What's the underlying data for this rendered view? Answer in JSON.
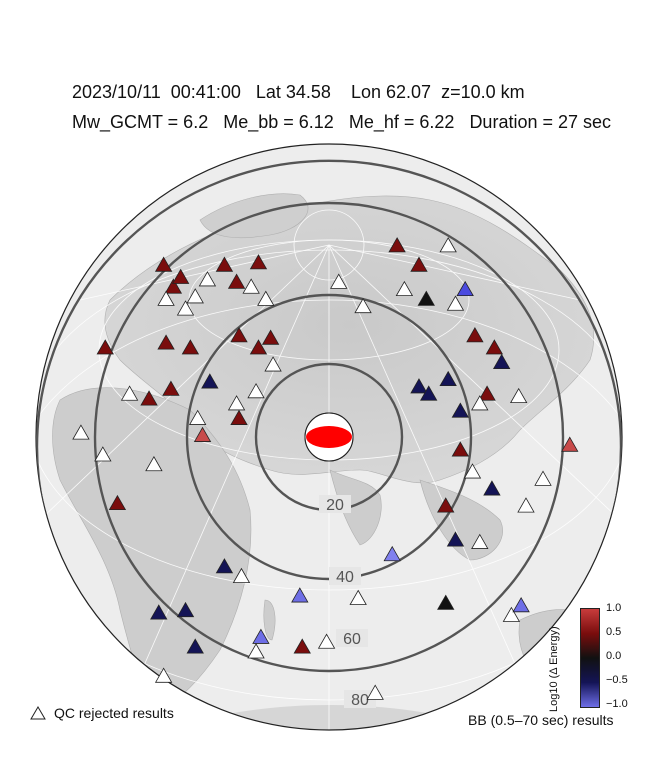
{
  "header": {
    "date": "2023/10/11",
    "time": "00:41:00",
    "lat": "Lat 34.58",
    "lon": "Lon 62.07",
    "depth": "z=10.0 km",
    "mw": "Mw_GCMT = 6.2",
    "me_bb": "Me_bb = 6.12",
    "me_hf": "Me_hf = 6.22",
    "duration": "Duration = 27 sec"
  },
  "distance_rings": [
    {
      "deg": 10,
      "label": ""
    },
    {
      "deg": 20,
      "label": "20"
    },
    {
      "deg": 40,
      "label": "40"
    },
    {
      "deg": 60,
      "label": "60"
    },
    {
      "deg": 80,
      "label": "80"
    }
  ],
  "legend": {
    "qc_label": "QC rejected results",
    "bb_label": "BB (0.5–70 sec) results",
    "colorbar_title": "Log10 (Δ Energy)",
    "colorbar_ticks": [
      "1.0",
      "0.5",
      "0.0",
      "−0.5",
      "−1.0"
    ]
  },
  "colors": {
    "strong_red": "#c84a4a",
    "dark_red": "#7a0d0d",
    "near_zero": "#111111",
    "dark_blue": "#141456",
    "light_blue": "#6e6ee6",
    "qc_rejected": "#ffffff",
    "beachball_fill": "#ff0000"
  },
  "stations": [
    {
      "u": 0.28,
      "v": 0.79,
      "c": "#7a0d0d"
    },
    {
      "u": 0.37,
      "v": 0.71,
      "c": "#7a0d0d"
    },
    {
      "u": 0.49,
      "v": 0.79,
      "c": "#ffffff"
    },
    {
      "u": 0.56,
      "v": 0.61,
      "c": "#4b4be0"
    },
    {
      "u": -0.68,
      "v": 0.71,
      "c": "#7a0d0d"
    },
    {
      "u": -0.64,
      "v": 0.62,
      "c": "#7a0d0d"
    },
    {
      "u": -0.67,
      "v": 0.57,
      "c": "#ffffff"
    },
    {
      "u": -0.61,
      "v": 0.66,
      "c": "#7a0d0d"
    },
    {
      "u": -0.55,
      "v": 0.58,
      "c": "#ffffff"
    },
    {
      "u": -0.5,
      "v": 0.65,
      "c": "#ffffff"
    },
    {
      "u": -0.43,
      "v": 0.71,
      "c": "#7a0d0d"
    },
    {
      "u": -0.38,
      "v": 0.64,
      "c": "#7a0d0d"
    },
    {
      "u": -0.29,
      "v": 0.72,
      "c": "#7a0d0d"
    },
    {
      "u": -0.32,
      "v": 0.62,
      "c": "#ffffff"
    },
    {
      "u": -0.26,
      "v": 0.57,
      "c": "#ffffff"
    },
    {
      "u": -0.59,
      "v": 0.53,
      "c": "#ffffff"
    },
    {
      "u": 0.04,
      "v": 0.64,
      "c": "#ffffff"
    },
    {
      "u": 0.31,
      "v": 0.61,
      "c": "#ffffff"
    },
    {
      "u": 0.14,
      "v": 0.54,
      "c": "#ffffff"
    },
    {
      "u": 0.4,
      "v": 0.57,
      "c": "#111111"
    },
    {
      "u": 0.52,
      "v": 0.55,
      "c": "#ffffff"
    },
    {
      "u": 0.6,
      "v": 0.42,
      "c": "#7a0d0d"
    },
    {
      "u": 0.68,
      "v": 0.37,
      "c": "#7a0d0d"
    },
    {
      "u": 0.71,
      "v": 0.31,
      "c": "#141456"
    },
    {
      "u": -0.92,
      "v": 0.37,
      "c": "#7a0d0d"
    },
    {
      "u": -0.67,
      "v": 0.39,
      "c": "#7a0d0d"
    },
    {
      "u": -0.57,
      "v": 0.37,
      "c": "#7a0d0d"
    },
    {
      "u": -0.37,
      "v": 0.42,
      "c": "#7a0d0d"
    },
    {
      "u": -0.29,
      "v": 0.37,
      "c": "#7a0d0d"
    },
    {
      "u": -0.24,
      "v": 0.41,
      "c": "#7a0d0d"
    },
    {
      "u": -0.82,
      "v": 0.18,
      "c": "#ffffff"
    },
    {
      "u": -0.74,
      "v": 0.16,
      "c": "#7a0d0d"
    },
    {
      "u": -0.65,
      "v": 0.2,
      "c": "#7a0d0d"
    },
    {
      "u": -0.49,
      "v": 0.23,
      "c": "#141456"
    },
    {
      "u": -0.54,
      "v": 0.08,
      "c": "#ffffff"
    },
    {
      "u": -0.3,
      "v": 0.19,
      "c": "#ffffff"
    },
    {
      "u": -0.38,
      "v": 0.14,
      "c": "#ffffff"
    },
    {
      "u": -0.37,
      "v": 0.08,
      "c": "#7a0d0d"
    },
    {
      "u": -0.52,
      "v": 0.01,
      "c": "#c84a4a"
    },
    {
      "u": -1.02,
      "v": 0.02,
      "c": "#ffffff"
    },
    {
      "u": -0.93,
      "v": -0.07,
      "c": "#ffffff"
    },
    {
      "u": -0.72,
      "v": -0.11,
      "c": "#ffffff"
    },
    {
      "u": -0.87,
      "v": -0.27,
      "c": "#7a0d0d"
    },
    {
      "u": 0.37,
      "v": 0.21,
      "c": "#141456"
    },
    {
      "u": 0.41,
      "v": 0.18,
      "c": "#141456"
    },
    {
      "u": 0.49,
      "v": 0.24,
      "c": "#141456"
    },
    {
      "u": 0.54,
      "v": 0.11,
      "c": "#141456"
    },
    {
      "u": 0.65,
      "v": 0.18,
      "c": "#7a0d0d"
    },
    {
      "u": 0.62,
      "v": 0.14,
      "c": "#ffffff"
    },
    {
      "u": 0.78,
      "v": 0.17,
      "c": "#ffffff"
    },
    {
      "u": 0.99,
      "v": -0.03,
      "c": "#c84a4a"
    },
    {
      "u": 0.54,
      "v": -0.05,
      "c": "#7a0d0d"
    },
    {
      "u": 0.59,
      "v": -0.14,
      "c": "#ffffff"
    },
    {
      "u": 0.67,
      "v": -0.21,
      "c": "#141456"
    },
    {
      "u": 0.88,
      "v": -0.17,
      "c": "#ffffff"
    },
    {
      "u": 0.81,
      "v": -0.28,
      "c": "#ffffff"
    },
    {
      "u": 0.48,
      "v": -0.28,
      "c": "#7a0d0d"
    },
    {
      "u": 0.52,
      "v": -0.42,
      "c": "#141456"
    },
    {
      "u": 0.62,
      "v": -0.43,
      "c": "#ffffff"
    },
    {
      "u": 0.26,
      "v": -0.48,
      "c": "#8080ee"
    },
    {
      "u": 0.48,
      "v": -0.68,
      "c": "#111111"
    },
    {
      "u": 0.75,
      "v": -0.73,
      "c": "#ffffff"
    },
    {
      "u": 0.79,
      "v": -0.69,
      "c": "#6e6ee6"
    },
    {
      "u": -0.43,
      "v": -0.53,
      "c": "#141456"
    },
    {
      "u": -0.36,
      "v": -0.57,
      "c": "#ffffff"
    },
    {
      "u": -0.12,
      "v": -0.65,
      "c": "#6e6ee6"
    },
    {
      "u": 0.12,
      "v": -0.66,
      "c": "#ffffff"
    },
    {
      "u": -0.7,
      "v": -0.72,
      "c": "#141456"
    },
    {
      "u": -0.59,
      "v": -0.71,
      "c": "#141456"
    },
    {
      "u": -0.55,
      "v": -0.86,
      "c": "#141456"
    },
    {
      "u": -0.68,
      "v": -0.98,
      "c": "#ffffff"
    },
    {
      "u": -0.28,
      "v": -0.82,
      "c": "#6e6ee6"
    },
    {
      "u": -0.3,
      "v": -0.88,
      "c": "#ffffff"
    },
    {
      "u": -0.11,
      "v": -0.86,
      "c": "#7a0d0d"
    },
    {
      "u": -0.01,
      "v": -0.84,
      "c": "#ffffff"
    },
    {
      "u": 0.19,
      "v": -1.05,
      "c": "#ffffff"
    },
    {
      "u": -0.23,
      "v": 0.3,
      "c": "#ffffff"
    }
  ]
}
